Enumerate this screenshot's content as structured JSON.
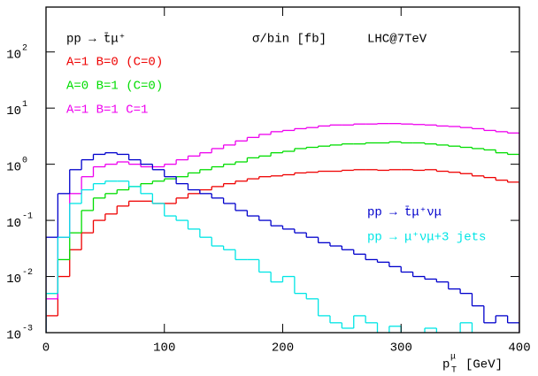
{
  "chart_data": {
    "type": "histogram",
    "log_y": true,
    "annotations": [
      "pp → t̄μ⁺",
      "σ/bin [fb]",
      "LHC@7TeV"
    ],
    "xlabel": {
      "base": "p",
      "sup": "μ",
      "sub": "T",
      "rest": "[GeV]"
    },
    "bins": [
      0,
      10,
      20,
      30,
      40,
      50,
      60,
      70,
      80,
      90,
      100,
      110,
      120,
      130,
      140,
      150,
      160,
      170,
      180,
      190,
      200,
      210,
      220,
      230,
      240,
      250,
      260,
      270,
      280,
      290,
      300,
      310,
      320,
      330,
      340,
      350,
      360,
      370,
      380,
      390,
      400
    ],
    "xlim": [
      0,
      400
    ],
    "xticks": [
      0,
      100,
      200,
      300,
      400
    ],
    "ylim": [
      0.001,
      630
    ],
    "yticks": [
      {
        "value": 0.001,
        "label": "10",
        "exponent": "-3"
      },
      {
        "value": 0.01,
        "label": "10",
        "exponent": "-2"
      },
      {
        "value": 0.1,
        "label": "10",
        "exponent": "-1"
      },
      {
        "value": 1,
        "label": "10",
        "exponent": "0"
      },
      {
        "value": 10,
        "label": "10",
        "exponent": "1"
      },
      {
        "value": 100,
        "label": "10",
        "exponent": "2"
      }
    ],
    "series": [
      {
        "name": "A=1 B=0 (C=0)",
        "color": "#ee0000",
        "values": [
          0.002,
          0.01,
          0.03,
          0.06,
          0.1,
          0.13,
          0.18,
          0.22,
          0.22,
          0.2,
          0.2,
          0.25,
          0.3,
          0.35,
          0.4,
          0.45,
          0.5,
          0.55,
          0.6,
          0.62,
          0.65,
          0.7,
          0.72,
          0.75,
          0.75,
          0.78,
          0.8,
          0.8,
          0.78,
          0.8,
          0.8,
          0.78,
          0.8,
          0.75,
          0.72,
          0.68,
          0.62,
          0.58,
          0.52,
          0.48
        ]
      },
      {
        "name": "A=0 B=1 (C=0)",
        "color": "#00dd00",
        "values": [
          0.005,
          0.02,
          0.06,
          0.15,
          0.25,
          0.3,
          0.35,
          0.4,
          0.45,
          0.5,
          0.55,
          0.6,
          0.7,
          0.8,
          0.9,
          1.0,
          1.1,
          1.3,
          1.4,
          1.6,
          1.7,
          1.9,
          2.0,
          2.1,
          2.2,
          2.3,
          2.3,
          2.4,
          2.4,
          2.5,
          2.4,
          2.4,
          2.3,
          2.2,
          2.1,
          2.0,
          1.9,
          1.8,
          1.6,
          1.5
        ]
      },
      {
        "name": "A=1 B=1 C=1",
        "color": "#ee00ee",
        "values": [
          0.004,
          0.05,
          0.3,
          0.6,
          0.9,
          1.0,
          1.1,
          1.0,
          0.9,
          0.9,
          1.0,
          1.2,
          1.4,
          1.6,
          1.9,
          2.2,
          2.6,
          3.0,
          3.4,
          3.8,
          4.0,
          4.3,
          4.5,
          4.8,
          5.0,
          5.0,
          5.2,
          5.2,
          5.3,
          5.3,
          5.2,
          5.1,
          5.0,
          4.8,
          4.7,
          4.5,
          4.3,
          4.0,
          3.8,
          3.6
        ]
      },
      {
        "name": "pp → t̄μ⁺νμ",
        "color": "#0000cc",
        "values": [
          0.05,
          0.3,
          0.8,
          1.2,
          1.5,
          1.6,
          1.5,
          1.2,
          1.0,
          0.8,
          0.6,
          0.45,
          0.35,
          0.3,
          0.25,
          0.2,
          0.15,
          0.12,
          0.1,
          0.08,
          0.07,
          0.06,
          0.05,
          0.04,
          0.035,
          0.03,
          0.025,
          0.02,
          0.018,
          0.015,
          0.012,
          0.01,
          0.009,
          0.008,
          0.006,
          0.005,
          0.003,
          0.0015,
          0.002,
          0.0015
        ]
      },
      {
        "name": "pp → μ⁺νμ+3 jets",
        "color": "#00e5e5",
        "values": [
          0.005,
          0.05,
          0.2,
          0.35,
          0.45,
          0.5,
          0.5,
          0.4,
          0.3,
          0.2,
          0.12,
          0.1,
          0.07,
          0.05,
          0.035,
          0.03,
          0.02,
          0.02,
          0.012,
          0.008,
          0.01,
          0.005,
          0.004,
          0.002,
          0.0015,
          0.0012,
          0.002,
          0.0015,
          null,
          0.0013,
          null,
          null,
          0.0012,
          null,
          null,
          0.0015,
          null,
          null,
          null,
          null
        ]
      }
    ]
  }
}
